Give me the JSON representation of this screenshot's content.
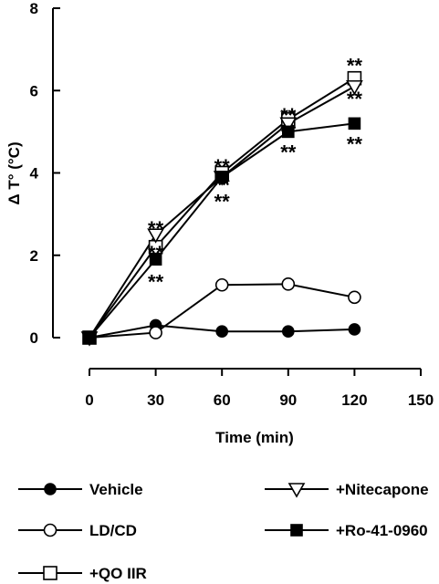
{
  "chart_data": {
    "type": "line",
    "xlabel": "Time (min)",
    "ylabel": "Δ T° (°C)",
    "xlim": [
      0,
      150
    ],
    "ylim": [
      0,
      8
    ],
    "xticks": [
      0,
      30,
      60,
      90,
      120,
      150
    ],
    "yticks": [
      0,
      2,
      4,
      6,
      8
    ],
    "grid": false,
    "legend_position": "bottom",
    "x": [
      0,
      30,
      60,
      90,
      120
    ],
    "series": [
      {
        "name": "Vehicle",
        "marker": "circle-filled",
        "values": [
          0,
          0.3,
          0.15,
          0.15,
          0.2
        ]
      },
      {
        "name": "LD/CD",
        "marker": "circle-open",
        "values": [
          0,
          0.12,
          1.28,
          1.3,
          0.98
        ]
      },
      {
        "name": "+QO IIR",
        "marker": "square-open",
        "values": [
          0,
          2.2,
          4.0,
          5.3,
          6.3
        ]
      },
      {
        "name": "+Nitecapone",
        "marker": "triangle-down-open",
        "values": [
          0,
          2.5,
          3.9,
          5.2,
          6.1
        ]
      },
      {
        "name": "+Ro-41-0960",
        "marker": "square-filled",
        "values": [
          0,
          1.9,
          3.9,
          5.0,
          5.2
        ]
      }
    ],
    "annotations": [
      {
        "text": "**",
        "x": 30,
        "y": 2.75
      },
      {
        "text": "**",
        "x": 30,
        "y": 2.15
      },
      {
        "text": "**",
        "x": 30,
        "y": 1.45
      },
      {
        "text": "**",
        "x": 60,
        "y": 4.25
      },
      {
        "text": "**",
        "x": 60,
        "y": 3.8
      },
      {
        "text": "**",
        "x": 60,
        "y": 3.4
      },
      {
        "text": "**",
        "x": 90,
        "y": 5.5
      },
      {
        "text": "**",
        "x": 90,
        "y": 5.1
      },
      {
        "text": "**",
        "x": 90,
        "y": 4.6
      },
      {
        "text": "**",
        "x": 120,
        "y": 6.7
      },
      {
        "text": "**",
        "x": 120,
        "y": 5.9
      },
      {
        "text": "**",
        "x": 120,
        "y": 4.8
      }
    ]
  },
  "legend": [
    {
      "label": "Vehicle",
      "marker": "circle-filled"
    },
    {
      "label": "+Nitecapone",
      "marker": "triangle-down-open"
    },
    {
      "label": "LD/CD",
      "marker": "circle-open"
    },
    {
      "label": "+Ro-41-0960",
      "marker": "square-filled"
    },
    {
      "label": "+QO IIR",
      "marker": "square-open"
    }
  ]
}
